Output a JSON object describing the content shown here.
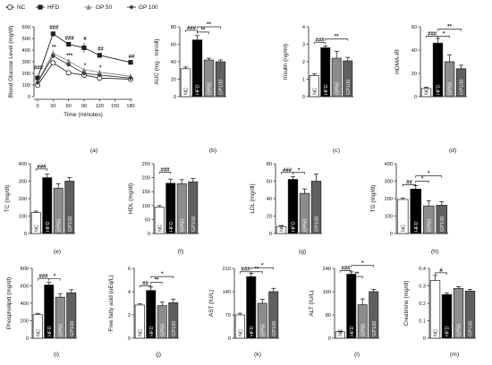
{
  "series_styles": {
    "NC": "#1f1f1f",
    "HFD": "#1f1f1f",
    "GP 50": "#8a8a8a",
    "GP 100": "#3a3a3a"
  },
  "bar_fills": {
    "NC": "#ffffff",
    "HFD": "#000000",
    "GP50": "#8c8c8c",
    "GP100": "#5f5f5f"
  },
  "chart_data": [
    {
      "id": "a",
      "panel_label": "(a)",
      "type": "line",
      "ylabel": "Blood Glucose Level (mg/dl)",
      "xlabel": "Time (minutes)",
      "x": [
        0,
        30,
        60,
        90,
        120,
        180
      ],
      "xticks": [
        0,
        30,
        60,
        90,
        120,
        150,
        180
      ],
      "ylim": [
        0,
        600
      ],
      "yticks": [
        0,
        100,
        200,
        300,
        400,
        500,
        600
      ],
      "legend_placement": "top",
      "series": [
        {
          "name": "NC",
          "marker": "circle-open",
          "values": [
            98,
            290,
            205,
            185,
            160,
            150
          ],
          "err": [
            8,
            18,
            15,
            12,
            10,
            10
          ]
        },
        {
          "name": "HFD",
          "marker": "square",
          "values": [
            160,
            540,
            450,
            420,
            355,
            295
          ],
          "err": [
            10,
            18,
            20,
            45,
            20,
            12
          ]
        },
        {
          "name": "GP 50",
          "marker": "triangle",
          "values": [
            125,
            375,
            305,
            230,
            210,
            175
          ],
          "err": [
            10,
            25,
            20,
            15,
            15,
            12
          ]
        },
        {
          "name": "GP 100",
          "marker": "diamond",
          "values": [
            120,
            350,
            275,
            200,
            185,
            160
          ],
          "err": [
            10,
            20,
            18,
            15,
            12,
            10
          ]
        }
      ],
      "annotations": [
        {
          "text": "###",
          "x": 0,
          "y": 235
        },
        {
          "text": "###",
          "x": 30,
          "y": 580
        },
        {
          "text": "###",
          "x": 60,
          "y": 490
        },
        {
          "text": "#",
          "x": 90,
          "y": 485
        },
        {
          "text": "##",
          "x": 120,
          "y": 395
        },
        {
          "text": "##",
          "x": 180,
          "y": 330
        },
        {
          "text": "**",
          "x": 30,
          "y": 410
        },
        {
          "text": "***",
          "x": 60,
          "y": 340
        },
        {
          "text": "*",
          "x": 90,
          "y": 255
        },
        {
          "text": "*",
          "x": 120,
          "y": 235
        }
      ]
    },
    {
      "id": "b",
      "panel_label": "(b)",
      "type": "bar",
      "ylabel": "AUC (mg · min/dl)",
      "categories": [
        "NC",
        "HFD",
        "GP50",
        "GP100"
      ],
      "values": [
        32,
        65,
        42,
        40
      ],
      "err": [
        2,
        5,
        2,
        2
      ],
      "ylim": [
        0,
        80
      ],
      "yticks": [
        0,
        20,
        40,
        60,
        80
      ],
      "brackets": [
        {
          "from": 0,
          "to": 1,
          "y": 76,
          "text": "###"
        },
        {
          "from": 1,
          "to": 2,
          "y": 74,
          "text": "**"
        },
        {
          "from": 1,
          "to": 3,
          "y": 80,
          "text": "**"
        }
      ]
    },
    {
      "id": "c",
      "panel_label": "(c)",
      "type": "bar",
      "ylabel": "Insulin (ng/ml)",
      "categories": [
        "NC",
        "HFD",
        "GP50",
        "GP100"
      ],
      "values": [
        1.2,
        2.8,
        2.2,
        2.05
      ],
      "err": [
        0.1,
        0.1,
        0.4,
        0.2
      ],
      "ylim": [
        0,
        4
      ],
      "yticks": [
        0,
        1,
        2,
        3,
        4
      ],
      "brackets": [
        {
          "from": 0,
          "to": 1,
          "y": 3.1,
          "text": "###"
        },
        {
          "from": 1,
          "to": 3,
          "y": 3.3,
          "text": "**"
        }
      ]
    },
    {
      "id": "d",
      "panel_label": "(d)",
      "type": "bar",
      "ylabel": "HOMA-IR",
      "categories": [
        "NC",
        "HFD",
        "GP50",
        "GP100"
      ],
      "values": [
        7,
        46,
        30,
        24
      ],
      "err": [
        1,
        4,
        6,
        3
      ],
      "ylim": [
        0,
        60
      ],
      "yticks": [
        0,
        20,
        40,
        60
      ],
      "brackets": [
        {
          "from": 0,
          "to": 1,
          "y": 52,
          "text": "###"
        },
        {
          "from": 1,
          "to": 2,
          "y": 52,
          "text": "*"
        },
        {
          "from": 1,
          "to": 3,
          "y": 58,
          "text": "**"
        }
      ]
    },
    {
      "id": "e",
      "panel_label": "(e)",
      "type": "bar",
      "ylabel": "TC (mg/dl)",
      "categories": [
        "NC",
        "HFD",
        "GP50",
        "GP100"
      ],
      "values": [
        120,
        320,
        260,
        300
      ],
      "err": [
        8,
        20,
        25,
        20
      ],
      "ylim": [
        0,
        400
      ],
      "yticks": [
        0,
        100,
        200,
        300,
        400
      ],
      "brackets": [
        {
          "from": 0,
          "to": 1,
          "y": 370,
          "text": "###"
        }
      ]
    },
    {
      "id": "f",
      "panel_label": "(f)",
      "type": "bar",
      "ylabel": "HDL (mg/dl)",
      "categories": [
        "NC",
        "HFD",
        "GP50",
        "GP100"
      ],
      "values": [
        95,
        180,
        178,
        185
      ],
      "err": [
        5,
        15,
        15,
        12
      ],
      "ylim": [
        0,
        250
      ],
      "yticks": [
        0,
        50,
        100,
        150,
        200,
        250
      ],
      "brackets": [
        {
          "from": 0,
          "to": 1,
          "y": 220,
          "text": "###"
        }
      ]
    },
    {
      "id": "g",
      "panel_label": "(g)",
      "type": "bar",
      "ylabel": "LDL (mg/dl)",
      "categories": [
        "NC",
        "HFD",
        "GP50",
        "GP100"
      ],
      "values": [
        8,
        62,
        46,
        60
      ],
      "err": [
        1,
        3,
        5,
        8
      ],
      "ylim": [
        0,
        80
      ],
      "yticks": [
        0,
        20,
        40,
        60,
        80
      ],
      "brackets": [
        {
          "from": 0,
          "to": 1,
          "y": 70,
          "text": "###"
        },
        {
          "from": 1,
          "to": 2,
          "y": 70,
          "text": "*"
        }
      ]
    },
    {
      "id": "h",
      "panel_label": "(h)",
      "type": "bar",
      "ylabel": "TG (mg/dl)",
      "categories": [
        "NC",
        "HFD",
        "GP50",
        "GP100"
      ],
      "values": [
        195,
        255,
        158,
        162
      ],
      "err": [
        8,
        20,
        30,
        20
      ],
      "ylim": [
        0,
        400
      ],
      "yticks": [
        0,
        100,
        200,
        300,
        400
      ],
      "brackets": [
        {
          "from": 0,
          "to": 1,
          "y": 280,
          "text": "##"
        },
        {
          "from": 1,
          "to": 2,
          "y": 300,
          "text": "*"
        },
        {
          "from": 1,
          "to": 3,
          "y": 330,
          "text": "*"
        }
      ]
    },
    {
      "id": "i",
      "panel_label": "(i)",
      "type": "bar",
      "ylabel": "Phospholipid (mg/dl)",
      "categories": [
        "NC",
        "HFD",
        "GP50",
        "GP100"
      ],
      "values": [
        270,
        610,
        470,
        520
      ],
      "err": [
        15,
        30,
        40,
        35
      ],
      "ylim": [
        0,
        800
      ],
      "yticks": [
        0,
        200,
        400,
        600,
        800
      ],
      "brackets": [
        {
          "from": 0,
          "to": 1,
          "y": 680,
          "text": "###"
        },
        {
          "from": 1,
          "to": 2,
          "y": 680,
          "text": "*"
        }
      ]
    },
    {
      "id": "j",
      "panel_label": "(j)",
      "type": "bar",
      "ylabel": "Free fatty acid (uEq/L)",
      "categories": [
        "NC",
        "HFD",
        "GP50",
        "GP100"
      ],
      "values": [
        2.85,
        4.1,
        2.8,
        3.05
      ],
      "err": [
        0.1,
        0.3,
        0.3,
        0.3
      ],
      "ylim": [
        0,
        6
      ],
      "yticks": [
        0,
        2,
        4,
        6
      ],
      "brackets": [
        {
          "from": 0,
          "to": 1,
          "y": 4.5,
          "text": "##"
        },
        {
          "from": 1,
          "to": 2,
          "y": 4.8,
          "text": "**"
        },
        {
          "from": 1,
          "to": 3,
          "y": 5.3,
          "text": "*"
        }
      ]
    },
    {
      "id": "k",
      "panel_label": "(k)",
      "type": "bar",
      "ylabel": "AST (IU/L)",
      "categories": [
        "NC",
        "HFD",
        "GP50",
        "GP100"
      ],
      "values": [
        70,
        185,
        105,
        140
      ],
      "err": [
        5,
        10,
        12,
        10
      ],
      "ylim": [
        0,
        210
      ],
      "yticks": [
        0,
        70,
        140,
        210
      ],
      "brackets": [
        {
          "from": 0,
          "to": 1,
          "y": 200,
          "text": "###"
        },
        {
          "from": 1,
          "to": 2,
          "y": 200,
          "text": "**"
        },
        {
          "from": 1,
          "to": 3,
          "y": 212,
          "text": "*"
        }
      ]
    },
    {
      "id": "l",
      "panel_label": "(l)",
      "type": "bar",
      "ylabel": "ALT (IU/L)",
      "categories": [
        "NC",
        "HFD",
        "GP50",
        "GP100"
      ],
      "values": [
        22,
        220,
        115,
        160
      ],
      "err": [
        2,
        8,
        20,
        8
      ],
      "ylim": [
        0,
        240
      ],
      "yticks": [
        0,
        80,
        160,
        240
      ],
      "brackets": [
        {
          "from": 0,
          "to": 1,
          "y": 232,
          "text": "###"
        },
        {
          "from": 1,
          "to": 2,
          "y": 212,
          "text": "**"
        },
        {
          "from": 1,
          "to": 3,
          "y": 250,
          "text": "*"
        }
      ]
    },
    {
      "id": "m",
      "panel_label": "(m)",
      "type": "bar",
      "ylabel": "Creatinine (mg/dl)",
      "categories": [
        "NC",
        "HFD",
        "GP50",
        "GP100"
      ],
      "values": [
        0.33,
        0.25,
        0.285,
        0.27
      ],
      "err": [
        0.03,
        0.01,
        0.01,
        0.01
      ],
      "ylim": [
        0,
        0.4
      ],
      "yticks": [
        0,
        0.1,
        0.2,
        0.3,
        0.4
      ],
      "brackets": [
        {
          "from": 0,
          "to": 1,
          "y": 0.375,
          "text": "#"
        }
      ]
    }
  ]
}
